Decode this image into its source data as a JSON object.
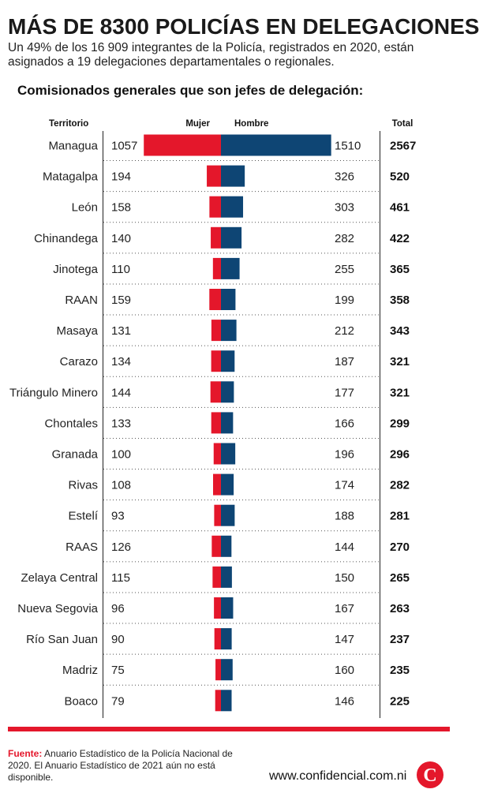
{
  "header": {
    "title": "MÁS DE 8300 POLICÍAS  EN DELEGACIONES",
    "subtitle": "Un 49% de los 16 909 integrantes de la Policía, registrados en 2020, están asignados a 19 delegaciones departamentales o regionales."
  },
  "footer": {
    "source_label": "Fuente:",
    "source_text": "Anuario Estadístico de la Policía Nacional de 2020. El Anuario Estadístico de 2021 aún no está disponible.",
    "site": "www.confidencial.com.ni",
    "logo_letter": "C"
  },
  "colors": {
    "mujer": "#e4172b",
    "hombre": "#0e4574",
    "accent": "#e4172b"
  },
  "chart_data": {
    "type": "bar",
    "title": "Comisionados generales que son jefes de delegación:",
    "column_headers": {
      "territory": "Territorio",
      "mujer": "Mujer",
      "hombre": "Hombre",
      "total": "Total"
    },
    "categories": [
      "Managua",
      "Matagalpa",
      "León",
      "Chinandega",
      "Jinotega",
      "RAAN",
      "Masaya",
      "Carazo",
      "Triángulo Minero",
      "Chontales",
      "Granada",
      "Rivas",
      "Estelí",
      "RAAS",
      "Zelaya Central",
      "Nueva Segovia",
      "Río San Juan",
      "Madriz",
      "Boaco"
    ],
    "series": [
      {
        "name": "Mujer",
        "values": [
          1057,
          194,
          158,
          140,
          110,
          159,
          131,
          134,
          144,
          133,
          100,
          108,
          93,
          126,
          115,
          96,
          90,
          75,
          79
        ]
      },
      {
        "name": "Hombre",
        "values": [
          1510,
          326,
          303,
          282,
          255,
          199,
          212,
          187,
          177,
          166,
          196,
          174,
          188,
          144,
          150,
          167,
          147,
          160,
          146
        ]
      }
    ],
    "totals": [
      2567,
      520,
      461,
      422,
      365,
      358,
      343,
      321,
      321,
      299,
      296,
      282,
      281,
      270,
      265,
      263,
      237,
      235,
      225
    ]
  }
}
